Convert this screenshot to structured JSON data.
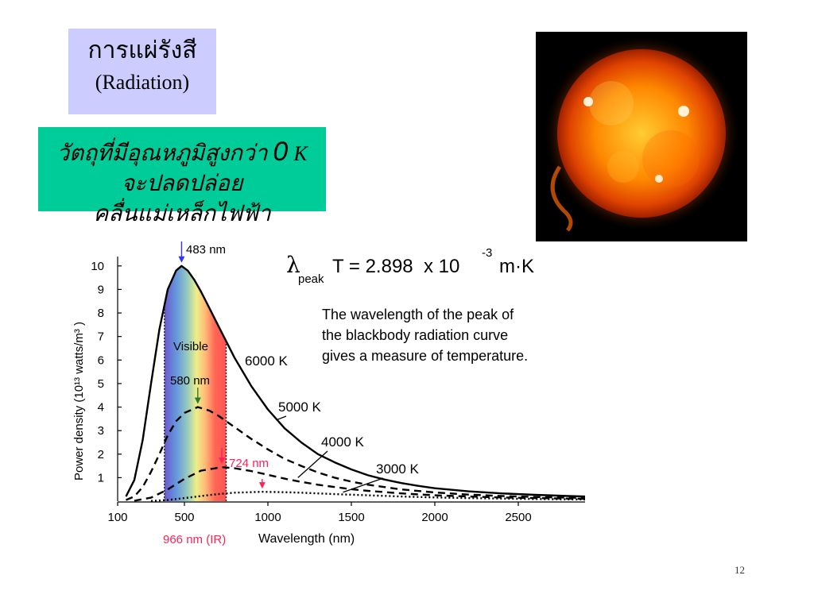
{
  "slide": {
    "title_thai": "การแผ่รังสี",
    "title_english": "(Radiation)",
    "statement_line1_text": "วัตถุที่มีอุณหภูมิสูงกว่า",
    "statement_line1_zero": "0",
    "statement_line1_unit": "K",
    "statement_line2": "จะปลดปล่อยคลื่นแม่เหล็กไฟฟ้า",
    "page_number": "12"
  },
  "sun_image": {
    "icon": "sun-photo-icon"
  },
  "chart_data": {
    "type": "line",
    "xlabel": "Wavelength (nm)",
    "ylabel": "Power density (10¹³ watts/m³ )",
    "xlim": [
      100,
      2900
    ],
    "ylim": [
      0,
      10.5
    ],
    "x_ticks": [
      "100",
      "500",
      "1000",
      "1500",
      "2000",
      "2500"
    ],
    "x_tick_values": [
      100,
      500,
      1000,
      1500,
      2000,
      2500
    ],
    "y_ticks": [
      "1",
      "2",
      "3",
      "4",
      "5",
      "6",
      "7",
      "8",
      "9",
      "10"
    ],
    "y_tick_values": [
      1,
      2,
      3,
      4,
      5,
      6,
      7,
      8,
      9,
      10
    ],
    "formula": {
      "lambda": "λ",
      "subscript": "peak",
      "main": "T = 2.898  x 10",
      "exponent": "-3",
      "units": "m·K"
    },
    "description": [
      "The wavelength of the peak of",
      "the blackbody radiation curve",
      "gives a measure of temperature."
    ],
    "visible_band": {
      "label": "Visible",
      "range": [
        380,
        750
      ]
    },
    "series": [
      {
        "name": "6000 K",
        "style": "solid",
        "color": "#000000",
        "x": [
          150,
          200,
          250,
          300,
          350,
          400,
          450,
          483,
          520,
          560,
          600,
          650,
          700,
          750,
          800,
          900,
          1000,
          1100,
          1200,
          1300,
          1400,
          1500,
          1600,
          1700,
          1800,
          1900,
          2000,
          2200,
          2400,
          2600,
          2800,
          2900
        ],
        "y": [
          0.2,
          0.9,
          2.6,
          5.0,
          7.3,
          9.0,
          9.8,
          10.0,
          9.8,
          9.4,
          8.9,
          8.2,
          7.5,
          6.8,
          6.1,
          4.9,
          3.9,
          3.1,
          2.5,
          2.0,
          1.65,
          1.35,
          1.1,
          0.92,
          0.77,
          0.65,
          0.55,
          0.42,
          0.33,
          0.27,
          0.22,
          0.2
        ]
      },
      {
        "name": "5000 K",
        "style": "dashed",
        "color": "#000000",
        "x": [
          150,
          200,
          250,
          300,
          350,
          400,
          450,
          500,
          580,
          650,
          700,
          800,
          900,
          1000,
          1100,
          1200,
          1300,
          1400,
          1500,
          1600,
          1800,
          2000,
          2200,
          2400,
          2600,
          2900
        ],
        "y": [
          0.05,
          0.2,
          0.6,
          1.25,
          2.0,
          2.8,
          3.4,
          3.75,
          4.0,
          3.85,
          3.65,
          3.15,
          2.65,
          2.2,
          1.8,
          1.5,
          1.22,
          1.0,
          0.83,
          0.7,
          0.5,
          0.37,
          0.28,
          0.22,
          0.18,
          0.14
        ]
      },
      {
        "name": "4000 K",
        "style": "dashed",
        "color": "#000000",
        "x": [
          200,
          300,
          400,
          500,
          600,
          724,
          800,
          900,
          1000,
          1100,
          1200,
          1300,
          1400,
          1500,
          1600,
          1800,
          2000,
          2200,
          2400,
          2600,
          2900
        ],
        "y": [
          0.02,
          0.15,
          0.5,
          0.95,
          1.3,
          1.45,
          1.4,
          1.28,
          1.12,
          0.96,
          0.82,
          0.7,
          0.6,
          0.51,
          0.44,
          0.33,
          0.25,
          0.2,
          0.16,
          0.13,
          0.1
        ]
      },
      {
        "name": "3000 K",
        "style": "dotted",
        "color": "#000000",
        "x": [
          300,
          400,
          500,
          600,
          700,
          800,
          966,
          1100,
          1200,
          1400,
          1600,
          1800,
          2000,
          2200,
          2400,
          2600,
          2900
        ],
        "y": [
          0.01,
          0.05,
          0.13,
          0.22,
          0.3,
          0.36,
          0.4,
          0.38,
          0.36,
          0.3,
          0.25,
          0.2,
          0.16,
          0.13,
          0.11,
          0.09,
          0.07
        ]
      }
    ],
    "peaks": [
      {
        "label": "483 nm",
        "x": 483,
        "y": 10.0,
        "color": "#3333ff",
        "text_color": "#000000"
      },
      {
        "label": "580 nm",
        "x": 580,
        "y": 4.0,
        "color": "#2d7a2d",
        "text_color": "#000000"
      },
      {
        "label": "724 nm",
        "x": 724,
        "y": 1.45,
        "color": "#ff2255",
        "text_color": "#ff2255"
      },
      {
        "label": "966 nm (IR)",
        "x": 966,
        "y": 0.4,
        "color": "#ff2255",
        "text_color": "#ff2255"
      }
    ]
  }
}
